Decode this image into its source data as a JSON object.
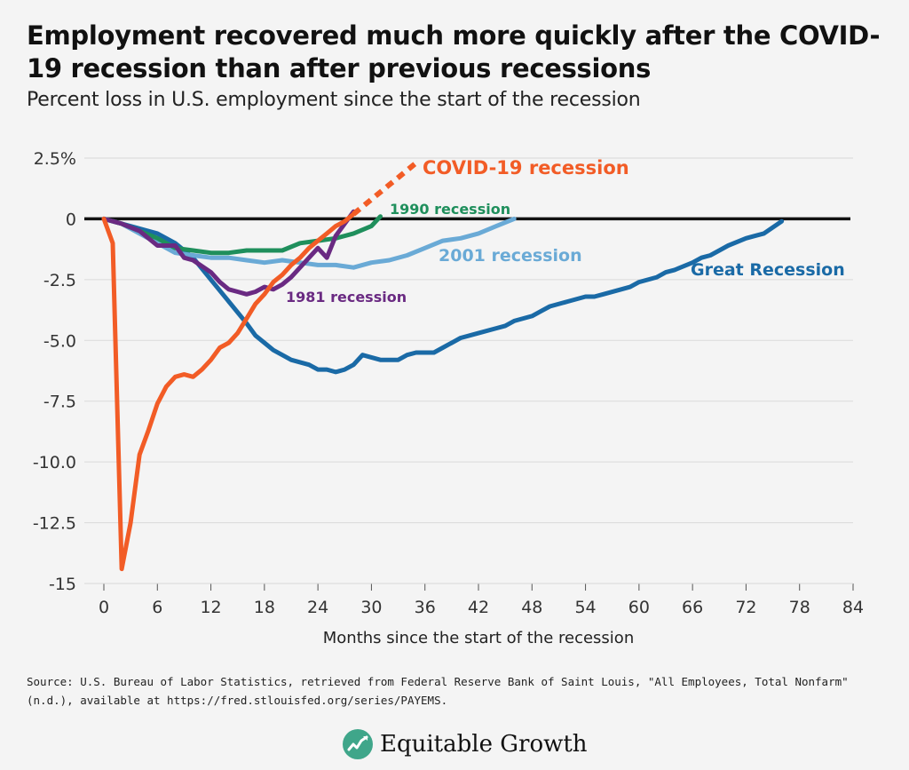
{
  "header": {
    "title": "Employment recovered much more quickly after the COVID-19 recession than after previous recessions",
    "subtitle": "Percent loss in U.S. employment since the start of the recession"
  },
  "footer": {
    "source": "Source: U.S. Bureau of Labor Statistics, retrieved from Federal Reserve Bank of Saint Louis, \"All Employees, Total Nonfarm\" (n.d.), available at https://fred.stlouisfed.org/series/PAYEMS.",
    "logo_text": "Equitable Growth",
    "logo_icon": "equitable-growth-logo-icon"
  },
  "chart_data": {
    "type": "line",
    "title": "",
    "xlabel": "Months since the start of the recession",
    "ylabel": "",
    "xlim": [
      0,
      84
    ],
    "ylim": [
      -15,
      2.5
    ],
    "xticks": [
      0,
      6,
      12,
      18,
      24,
      30,
      36,
      42,
      48,
      54,
      60,
      66,
      72,
      78,
      84
    ],
    "yticks": [
      2.5,
      0,
      -2.5,
      -5,
      -7.5,
      -10,
      -12.5,
      -15
    ],
    "ytick_labels": [
      "2.5%",
      "0",
      "-2.5",
      "-5.0",
      "-7.5",
      "-10.0",
      "-12.5",
      "-15"
    ],
    "grid": true,
    "zero_line": true,
    "series": [
      {
        "name": "Great Recession",
        "color": "#1a6aa6",
        "x": [
          0,
          2,
          4,
          6,
          8,
          10,
          12,
          14,
          16,
          17,
          18,
          19,
          20,
          21,
          22,
          23,
          24,
          25,
          26,
          27,
          28,
          29,
          30,
          31,
          32,
          33,
          34,
          35,
          36,
          37,
          38,
          39,
          40,
          42,
          44,
          45,
          46,
          48,
          49,
          50,
          52,
          54,
          55,
          56,
          58,
          59,
          60,
          62,
          63,
          64,
          66,
          67,
          68,
          69,
          70,
          72,
          73,
          74,
          76
        ],
        "values": [
          0,
          -0.2,
          -0.4,
          -0.6,
          -1.0,
          -1.6,
          -2.5,
          -3.4,
          -4.3,
          -4.8,
          -5.1,
          -5.4,
          -5.6,
          -5.8,
          -5.9,
          -6.0,
          -6.2,
          -6.2,
          -6.3,
          -6.2,
          -6.0,
          -5.6,
          -5.7,
          -5.8,
          -5.8,
          -5.8,
          -5.6,
          -5.5,
          -5.5,
          -5.5,
          -5.3,
          -5.1,
          -4.9,
          -4.7,
          -4.5,
          -4.4,
          -4.2,
          -4.0,
          -3.8,
          -3.6,
          -3.4,
          -3.2,
          -3.2,
          -3.1,
          -2.9,
          -2.8,
          -2.6,
          -2.4,
          -2.2,
          -2.1,
          -1.8,
          -1.6,
          -1.5,
          -1.3,
          -1.1,
          -0.8,
          -0.7,
          -0.6,
          -0.1
        ]
      },
      {
        "name": "2001 recession",
        "color": "#6aaad6",
        "x": [
          0,
          2,
          4,
          6,
          8,
          10,
          12,
          14,
          16,
          18,
          20,
          22,
          24,
          26,
          28,
          30,
          32,
          34,
          36,
          38,
          40,
          42,
          44,
          46
        ],
        "values": [
          0,
          -0.2,
          -0.6,
          -1.0,
          -1.4,
          -1.5,
          -1.6,
          -1.6,
          -1.7,
          -1.8,
          -1.7,
          -1.8,
          -1.9,
          -1.9,
          -2.0,
          -1.8,
          -1.7,
          -1.5,
          -1.2,
          -0.9,
          -0.8,
          -0.6,
          -0.3,
          0.0
        ]
      },
      {
        "name": "1990 recession",
        "color": "#1f8f5c",
        "x": [
          0,
          2,
          4,
          6,
          8,
          10,
          12,
          14,
          16,
          18,
          20,
          22,
          24,
          26,
          28,
          30,
          31
        ],
        "values": [
          0,
          -0.2,
          -0.5,
          -0.8,
          -1.2,
          -1.3,
          -1.4,
          -1.4,
          -1.3,
          -1.3,
          -1.3,
          -1.0,
          -0.9,
          -0.8,
          -0.6,
          -0.3,
          0.1
        ]
      },
      {
        "name": "1981 recession",
        "color": "#6a2a82",
        "x": [
          0,
          2,
          4,
          6,
          8,
          9,
          10,
          12,
          13,
          14,
          15,
          16,
          17,
          18,
          19,
          20,
          21,
          22,
          23,
          24,
          25,
          26,
          27,
          28
        ],
        "values": [
          0,
          -0.2,
          -0.5,
          -1.1,
          -1.1,
          -1.6,
          -1.7,
          -2.2,
          -2.6,
          -2.9,
          -3.0,
          -3.1,
          -3.0,
          -2.8,
          -2.9,
          -2.7,
          -2.4,
          -2.0,
          -1.6,
          -1.2,
          -1.6,
          -0.7,
          -0.2,
          0.3
        ]
      },
      {
        "name": "COVID-19 recession",
        "color": "#f25c26",
        "x": [
          0,
          1,
          2,
          3,
          4,
          5,
          6,
          7,
          8,
          9,
          10,
          11,
          12,
          13,
          14,
          15,
          16,
          17,
          18,
          19,
          20,
          21,
          22,
          23,
          24,
          25,
          26,
          27,
          28
        ],
        "values": [
          0,
          -1.0,
          -14.4,
          -12.5,
          -9.7,
          -8.7,
          -7.6,
          -6.9,
          -6.5,
          -6.4,
          -6.5,
          -6.2,
          -5.8,
          -5.3,
          -5.1,
          -4.7,
          -4.1,
          -3.5,
          -3.1,
          -2.6,
          -2.3,
          -1.9,
          -1.6,
          -1.2,
          -0.9,
          -0.6,
          -0.3,
          -0.1,
          0.2
        ],
        "projection_x": [
          28,
          29,
          30,
          31,
          32,
          33,
          34,
          35
        ],
        "projection_values": [
          0.2,
          0.5,
          0.8,
          1.1,
          1.4,
          1.7,
          2.0,
          2.3
        ]
      }
    ],
    "annotations": [
      {
        "text": "COVID-19 recession",
        "color": "#f25c26"
      },
      {
        "text": "1990 recession",
        "color": "#1f8f5c"
      },
      {
        "text": "2001 recession",
        "color": "#6aaad6"
      },
      {
        "text": "Great Recession",
        "color": "#1a6aa6"
      },
      {
        "text": "1981 recession",
        "color": "#6a2a82"
      }
    ]
  }
}
